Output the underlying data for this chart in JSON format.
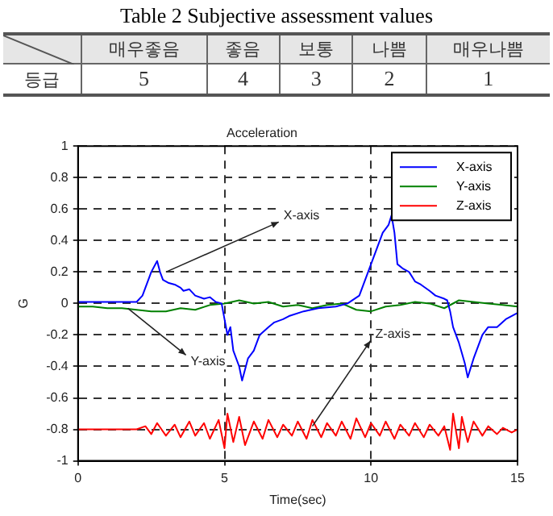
{
  "chart_data": [
    {
      "type": "other",
      "title": "Table 2 Subjective assessment values",
      "ylabel": "등급",
      "categories": [
        "매우좋음",
        "좋음",
        "보통",
        "나쁨",
        "매우나쁨"
      ],
      "values": [
        5,
        4,
        3,
        2,
        1
      ],
      "data_labels": true
    },
    {
      "type": "line",
      "title": "Acceleration",
      "xlabel": "Time(sec)",
      "ylabel": "G",
      "xlim": [
        0,
        15
      ],
      "xticks": [
        0,
        5,
        10,
        15
      ],
      "ylim": [
        -1,
        1
      ],
      "yticks": [
        -1,
        -0.8,
        -0.6,
        -0.4,
        -0.2,
        0,
        0.2,
        0.4,
        0.6,
        0.8,
        1
      ],
      "grid": true,
      "legend": "top right",
      "line_style": "solid",
      "marker": "none",
      "annotations": [
        {
          "text": "X-axis",
          "x": 3.0,
          "y": 0.2
        },
        {
          "text": "Y-axis",
          "x": 1.7,
          "y": -0.03
        },
        {
          "text": "Z-axis",
          "x": 8.0,
          "y": -0.78
        }
      ],
      "series": [
        {
          "name": "X-axis",
          "color": "#0000ff",
          "x": [
            0,
            1,
            2,
            2.2,
            2.5,
            2.7,
            2.8,
            2.9,
            3.1,
            3.3,
            3.5,
            3.6,
            3.8,
            4,
            4.3,
            4.5,
            4.7,
            4.9,
            5,
            5.1,
            5.2,
            5.3,
            5.5,
            5.6,
            5.8,
            6,
            6.2,
            6.5,
            6.7,
            7,
            7.2,
            7.7,
            8.2,
            8.8,
            9.2,
            9.6,
            9.9,
            10.2,
            10.4,
            10.6,
            10.7,
            10.8,
            10.9,
            11.1,
            11.3,
            11.5,
            11.7,
            12,
            12.2,
            12.5,
            12.6,
            12.7,
            12.8,
            13,
            13.2,
            13.3,
            13.5,
            13.8,
            14,
            14.3,
            14.6,
            15
          ],
          "values": [
            0.01,
            0.01,
            0.01,
            0.05,
            0.2,
            0.27,
            0.2,
            0.15,
            0.13,
            0.12,
            0.1,
            0.08,
            0.09,
            0.05,
            0.03,
            0.04,
            0.01,
            0.0,
            -0.1,
            -0.2,
            -0.15,
            -0.3,
            -0.4,
            -0.49,
            -0.35,
            -0.3,
            -0.2,
            -0.15,
            -0.12,
            -0.1,
            -0.08,
            -0.05,
            -0.03,
            -0.02,
            0.0,
            0.05,
            0.2,
            0.35,
            0.45,
            0.5,
            0.56,
            0.45,
            0.25,
            0.22,
            0.2,
            0.14,
            0.12,
            0.08,
            0.05,
            0.03,
            0.02,
            -0.05,
            -0.15,
            -0.25,
            -0.38,
            -0.47,
            -0.35,
            -0.2,
            -0.15,
            -0.15,
            -0.1,
            -0.06
          ]
        },
        {
          "name": "Y-axis",
          "color": "#008000",
          "x": [
            0,
            0.5,
            1,
            1.5,
            2,
            2.5,
            3,
            3.5,
            4,
            4.5,
            5,
            5.5,
            6,
            6.5,
            7,
            7.5,
            8,
            8.5,
            9,
            9.5,
            10,
            10.5,
            11,
            11.5,
            12,
            12.5,
            13,
            13.5,
            14,
            14.5,
            15
          ],
          "values": [
            -0.02,
            -0.02,
            -0.03,
            -0.03,
            -0.04,
            -0.05,
            -0.05,
            -0.03,
            -0.04,
            -0.01,
            0.0,
            0.02,
            0.0,
            0.01,
            -0.02,
            -0.01,
            -0.03,
            -0.01,
            0.0,
            -0.04,
            -0.05,
            -0.02,
            -0.01,
            0.01,
            0.0,
            -0.03,
            0.02,
            0.01,
            0.0,
            -0.01,
            -0.02
          ]
        },
        {
          "name": "Z-axis",
          "color": "#ff0000",
          "x": [
            0,
            1,
            2,
            2.3,
            2.5,
            2.7,
            3,
            3.3,
            3.5,
            3.8,
            4,
            4.3,
            4.5,
            4.8,
            5,
            5.1,
            5.3,
            5.5,
            5.7,
            6,
            6.3,
            6.5,
            6.8,
            7,
            7.3,
            7.5,
            7.8,
            8,
            8.3,
            8.5,
            8.8,
            9,
            9.3,
            9.5,
            9.8,
            10,
            10.3,
            10.5,
            10.8,
            11,
            11.3,
            11.5,
            11.8,
            12,
            12.3,
            12.5,
            12.7,
            12.8,
            13,
            13.1,
            13.3,
            13.5,
            13.8,
            14,
            14.3,
            14.5,
            14.8,
            15
          ],
          "values": [
            -0.8,
            -0.8,
            -0.8,
            -0.78,
            -0.83,
            -0.76,
            -0.84,
            -0.77,
            -0.85,
            -0.75,
            -0.84,
            -0.76,
            -0.86,
            -0.74,
            -0.92,
            -0.7,
            -0.88,
            -0.72,
            -0.9,
            -0.75,
            -0.86,
            -0.74,
            -0.85,
            -0.77,
            -0.84,
            -0.75,
            -0.86,
            -0.74,
            -0.85,
            -0.76,
            -0.84,
            -0.75,
            -0.86,
            -0.73,
            -0.85,
            -0.76,
            -0.84,
            -0.75,
            -0.86,
            -0.77,
            -0.84,
            -0.76,
            -0.85,
            -0.77,
            -0.84,
            -0.78,
            -0.93,
            -0.7,
            -0.92,
            -0.72,
            -0.88,
            -0.75,
            -0.84,
            -0.78,
            -0.83,
            -0.79,
            -0.82,
            -0.8
          ]
        }
      ]
    }
  ]
}
